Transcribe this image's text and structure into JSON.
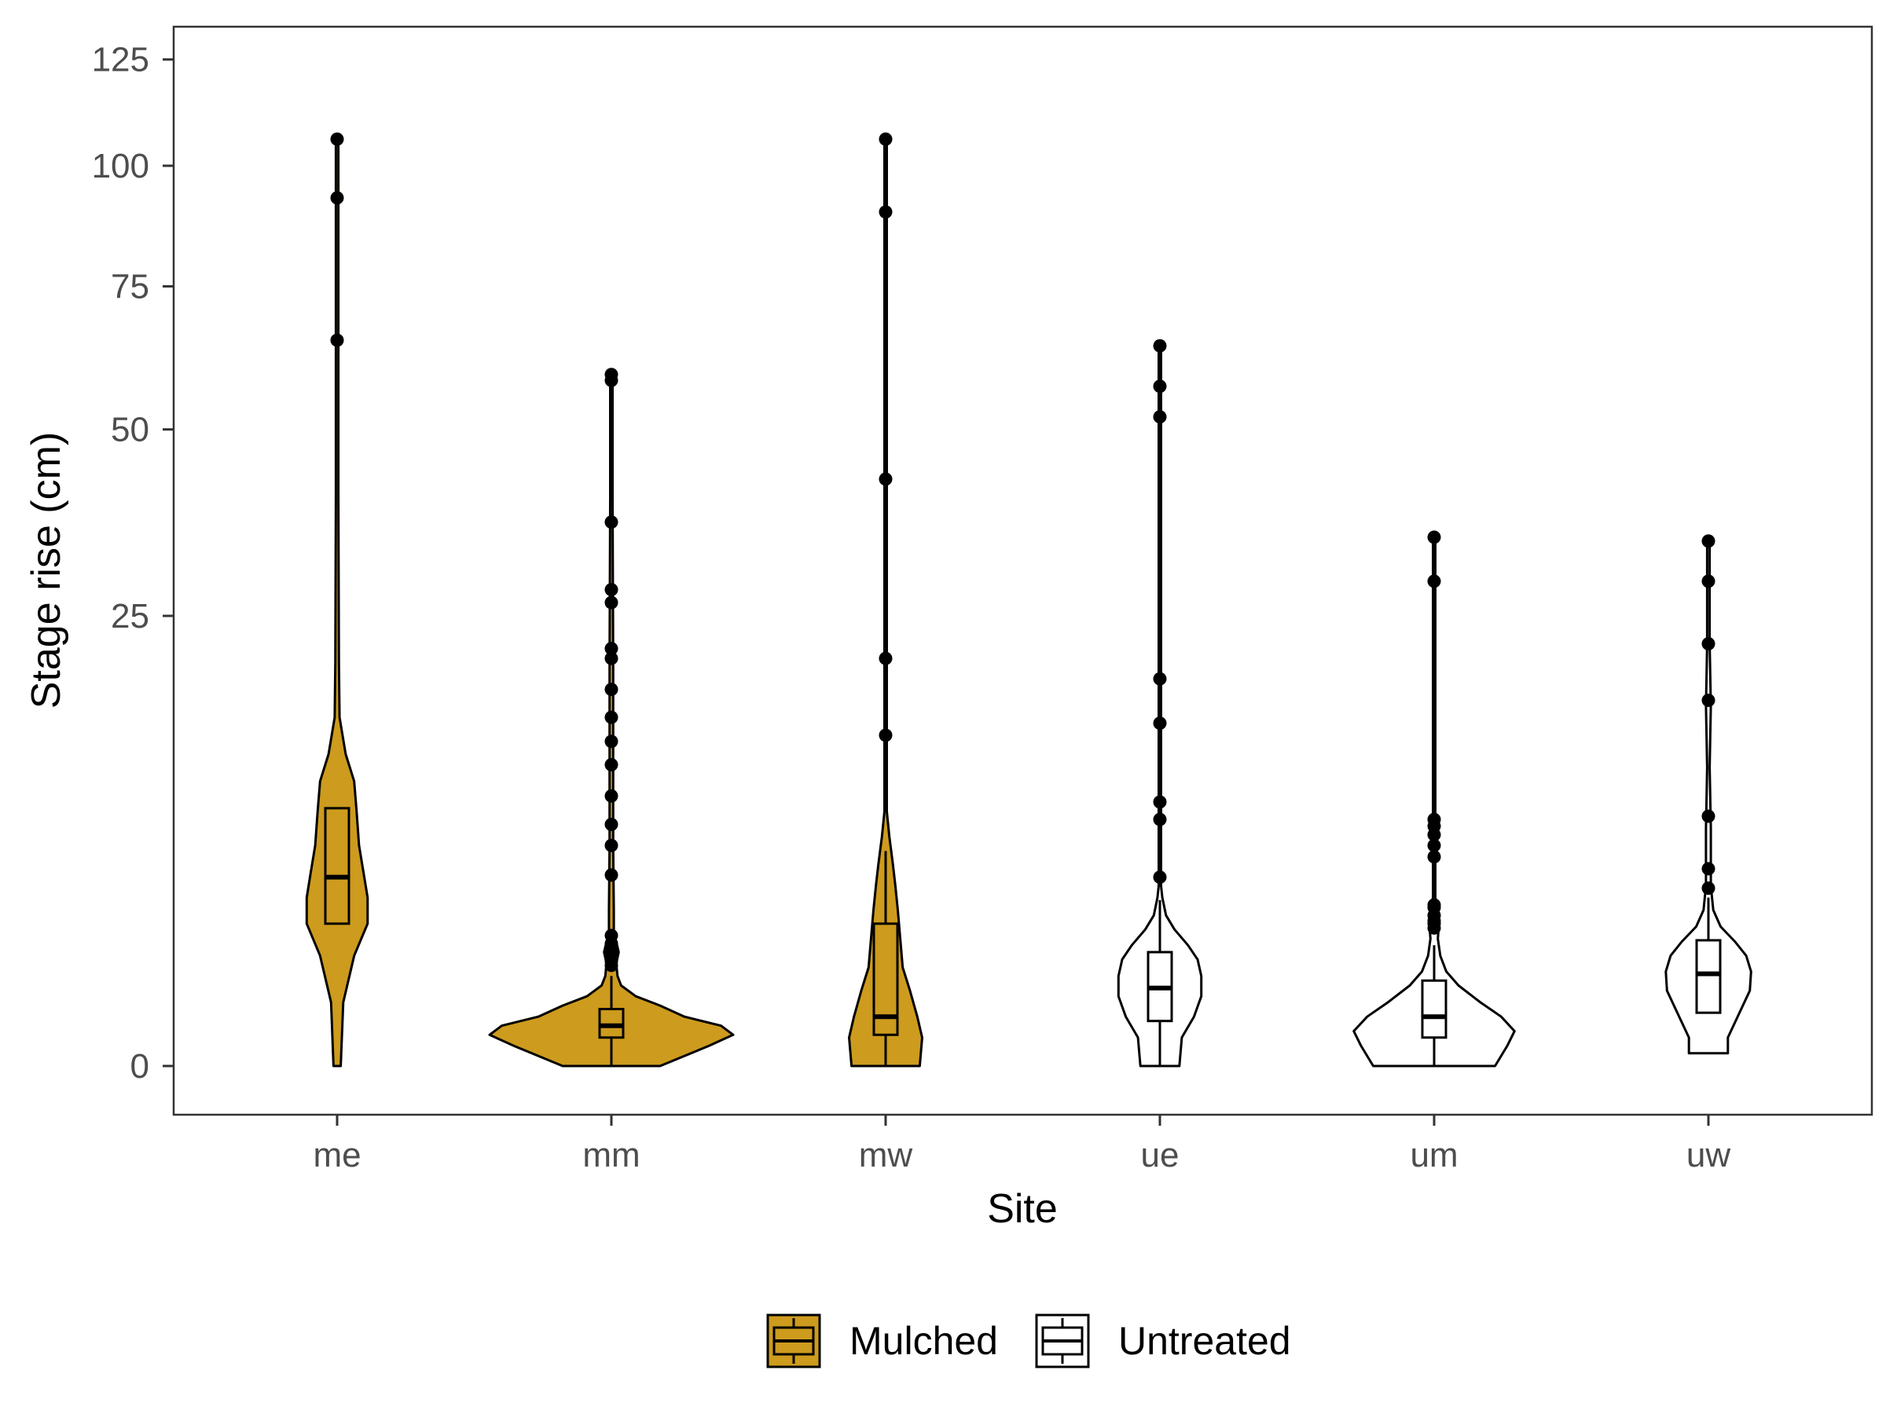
{
  "chart_data": {
    "type": "violin",
    "title": "",
    "xlabel": "Site",
    "ylabel": "Stage rise (cm)",
    "y_scale": "sqrt",
    "ylim": [
      0,
      125
    ],
    "y_ticks": [
      0,
      25,
      50,
      75,
      100,
      125
    ],
    "categories": [
      "me",
      "mm",
      "mw",
      "ue",
      "um",
      "uw"
    ],
    "legend": {
      "position": "bottom",
      "items": [
        {
          "label": "Mulched",
          "color": "#CD9B1D"
        },
        {
          "label": "Untreated",
          "color": "#FFFFFF"
        }
      ]
    },
    "grid": false,
    "series": [
      {
        "category": "me",
        "group": "Mulched",
        "box": {
          "q1": 2.5,
          "median": 4.4,
          "q3": 8.2,
          "lower": 2.5,
          "upper": 8.2
        },
        "outliers": [
          65,
          93,
          106
        ],
        "density": [
          [
            0,
            0.03
          ],
          [
            0.5,
            0.05
          ],
          [
            1.5,
            0.14
          ],
          [
            2.5,
            0.25
          ],
          [
            3.5,
            0.25
          ],
          [
            4.5,
            0.22
          ],
          [
            6,
            0.18
          ],
          [
            8,
            0.16
          ],
          [
            10,
            0.14
          ],
          [
            12,
            0.07
          ],
          [
            15,
            0.02
          ],
          [
            20,
            0.015
          ],
          [
            40,
            0.01
          ],
          [
            106,
            0.01
          ]
        ]
      },
      {
        "category": "mm",
        "group": "Mulched",
        "box": {
          "q1": 0.1,
          "median": 0.2,
          "q3": 0.4,
          "lower": 0,
          "upper": 1
        },
        "outliers": [
          1.25,
          1.35,
          1.55,
          1.7,
          1.85,
          2.1,
          4.5,
          6,
          7.2,
          9,
          11.2,
          13,
          15,
          17.5,
          20.5,
          21.5,
          26.5,
          28,
          36.5,
          58,
          59
        ],
        "density": [
          [
            0,
            0.4
          ],
          [
            0.05,
            0.8
          ],
          [
            0.12,
            1.0
          ],
          [
            0.2,
            0.9
          ],
          [
            0.3,
            0.6
          ],
          [
            0.45,
            0.4
          ],
          [
            0.6,
            0.2
          ],
          [
            0.8,
            0.08
          ],
          [
            1,
            0.05
          ],
          [
            1.3,
            0.04
          ],
          [
            1.6,
            0.06
          ],
          [
            1.9,
            0.04
          ],
          [
            2.2,
            0.02
          ],
          [
            3,
            0.02
          ],
          [
            6,
            0.015
          ],
          [
            20,
            0.015
          ],
          [
            40,
            0.01
          ],
          [
            59,
            0.01
          ]
        ]
      },
      {
        "category": "mw",
        "group": "Mulched",
        "box": {
          "q1": 0.12,
          "median": 0.3,
          "q3": 2.5,
          "lower": 0,
          "upper": 5.7
        },
        "outliers": [
          13.5,
          20.5,
          42.5,
          90,
          106
        ],
        "density": [
          [
            0,
            0.28
          ],
          [
            0.1,
            0.3
          ],
          [
            0.3,
            0.26
          ],
          [
            0.7,
            0.2
          ],
          [
            1.2,
            0.14
          ],
          [
            2,
            0.12
          ],
          [
            3,
            0.1
          ],
          [
            4,
            0.08
          ],
          [
            5,
            0.06
          ],
          [
            6.5,
            0.03
          ],
          [
            8,
            0.01
          ],
          [
            10,
            0.01
          ],
          [
            106,
            0.01
          ]
        ]
      },
      {
        "category": "ue",
        "group": "Untreated",
        "box": {
          "q1": 0.25,
          "median": 0.75,
          "q3": 1.6,
          "lower": 0,
          "upper": 3.4
        },
        "outliers": [
          4.4,
          7.5,
          8.6,
          14.5,
          18.5,
          52,
          57,
          64
        ],
        "density": [
          [
            0,
            0.16
          ],
          [
            0.1,
            0.18
          ],
          [
            0.3,
            0.28
          ],
          [
            0.6,
            0.34
          ],
          [
            1,
            0.34
          ],
          [
            1.4,
            0.31
          ],
          [
            1.8,
            0.23
          ],
          [
            2.3,
            0.12
          ],
          [
            2.8,
            0.05
          ],
          [
            3.5,
            0.02
          ],
          [
            4,
            0.01
          ],
          [
            64,
            0.01
          ]
        ]
      },
      {
        "category": "um",
        "group": "Untreated",
        "box": {
          "q1": 0.1,
          "median": 0.3,
          "q3": 0.9,
          "lower": 0,
          "upper": 1.8
        },
        "outliers": [
          2.35,
          2.5,
          2.6,
          2.8,
          3.1,
          3.2,
          5.4,
          6,
          6.6,
          7.1,
          7.5,
          29,
          34.5
        ],
        "density": [
          [
            0,
            0.5
          ],
          [
            0.05,
            0.6
          ],
          [
            0.15,
            0.66
          ],
          [
            0.3,
            0.55
          ],
          [
            0.5,
            0.38
          ],
          [
            0.8,
            0.2
          ],
          [
            1.1,
            0.1
          ],
          [
            1.5,
            0.05
          ],
          [
            2,
            0.03
          ],
          [
            2.5,
            0.04
          ],
          [
            3,
            0.03
          ],
          [
            3.5,
            0.01
          ],
          [
            5,
            0.01
          ],
          [
            34.5,
            0.01
          ]
        ]
      },
      {
        "category": "uw",
        "group": "Untreated",
        "box": {
          "q1": 0.35,
          "median": 1.05,
          "q3": 1.95,
          "lower": 0.35,
          "upper": 3.5
        },
        "outliers": [
          3.9,
          4.8,
          7.7,
          16.5,
          22,
          29,
          34
        ],
        "density": [
          [
            0.02,
            0.16
          ],
          [
            0.1,
            0.16
          ],
          [
            0.3,
            0.24
          ],
          [
            0.7,
            0.34
          ],
          [
            1.1,
            0.35
          ],
          [
            1.5,
            0.31
          ],
          [
            1.9,
            0.22
          ],
          [
            2.4,
            0.1
          ],
          [
            3,
            0.04
          ],
          [
            4,
            0.02
          ],
          [
            7,
            0.02
          ],
          [
            11,
            0.01
          ],
          [
            16,
            0.02
          ],
          [
            22,
            0.01
          ],
          [
            34,
            0.01
          ]
        ]
      }
    ]
  }
}
